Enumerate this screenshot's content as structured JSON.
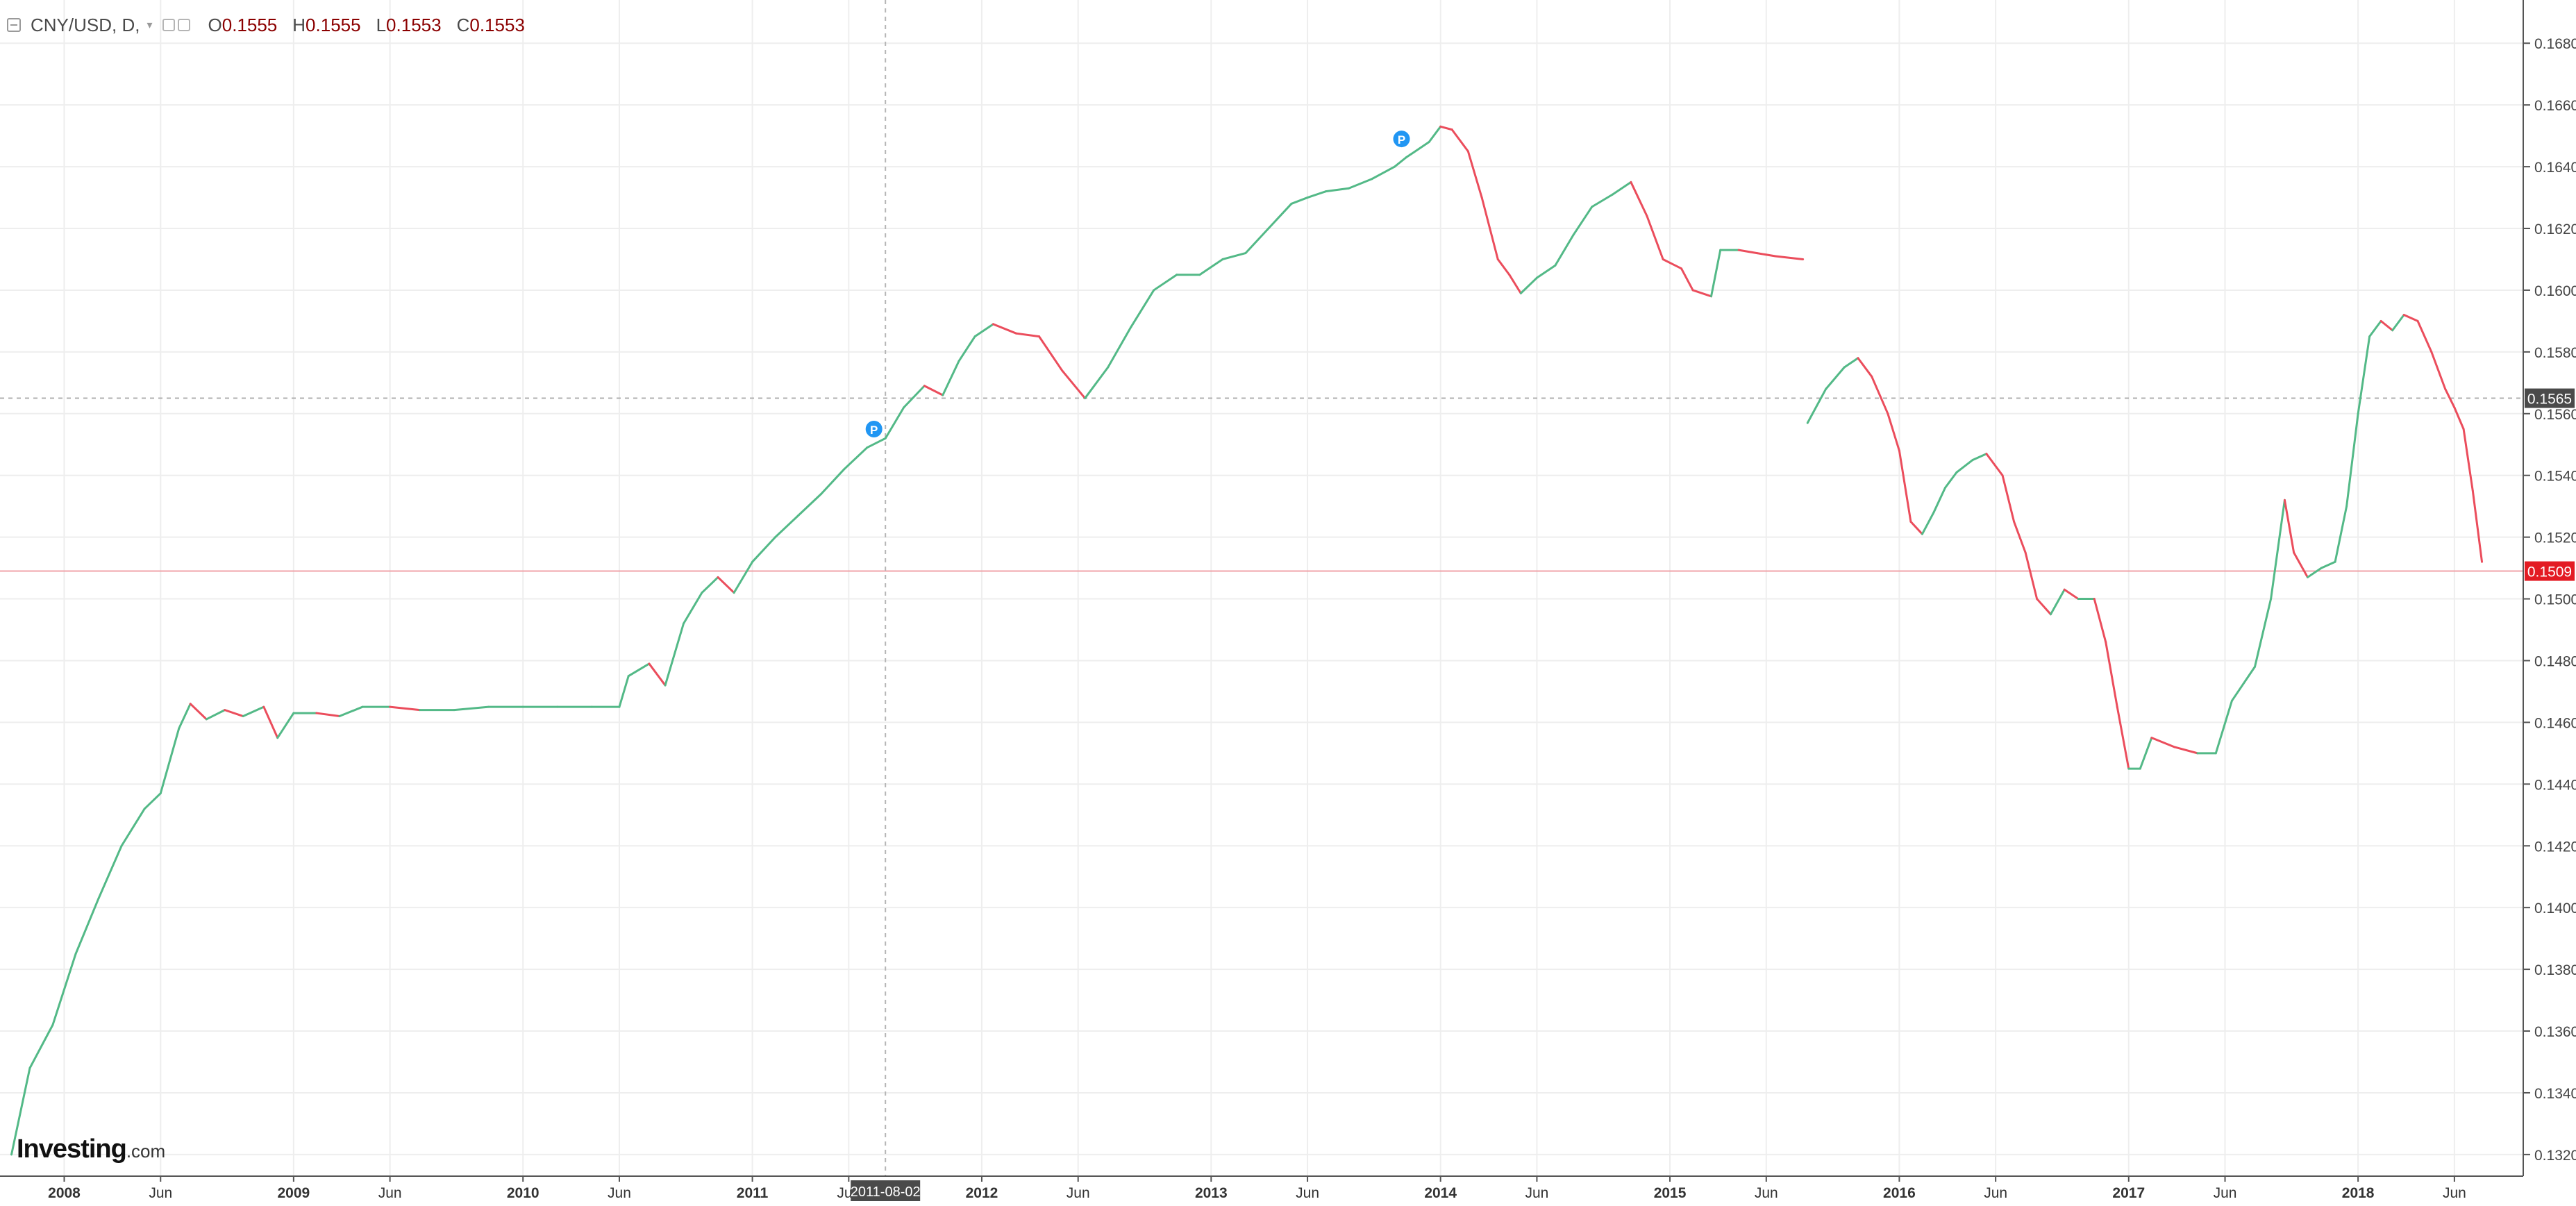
{
  "legend": {
    "symbol": "CNY/USD, D,",
    "o_label": "O",
    "o_value": "0.1555",
    "h_label": "H",
    "h_value": "0.1555",
    "l_label": "L",
    "l_value": "0.1553",
    "c_label": "C",
    "c_value": "0.1553"
  },
  "brand": {
    "name": "Investing",
    "suffix": ".com"
  },
  "chart_data": {
    "type": "line",
    "title": "CNY/USD, D,",
    "x_unit": "year",
    "ylim": [
      0.1313,
      0.1694
    ],
    "y_ticks": [
      "0.1320",
      "0.1340",
      "0.1360",
      "0.1380",
      "0.1400",
      "0.1420",
      "0.1440",
      "0.1460",
      "0.1480",
      "0.1500",
      "0.1520",
      "0.1540",
      "0.1560",
      "0.1580",
      "0.1600",
      "0.1620",
      "0.1640",
      "0.1660",
      "0.1680"
    ],
    "x_ticks": [
      {
        "label": "2008",
        "x": 2008.0,
        "major": true
      },
      {
        "label": "Jun",
        "x": 2008.42,
        "major": false
      },
      {
        "label": "2009",
        "x": 2009.0,
        "major": true
      },
      {
        "label": "Jun",
        "x": 2009.42,
        "major": false
      },
      {
        "label": "2010",
        "x": 2010.0,
        "major": true
      },
      {
        "label": "Jun",
        "x": 2010.42,
        "major": false
      },
      {
        "label": "2011",
        "x": 2011.0,
        "major": true
      },
      {
        "label": "Jun",
        "x": 2011.42,
        "major": false
      },
      {
        "label": "2012",
        "x": 2012.0,
        "major": true
      },
      {
        "label": "Jun",
        "x": 2012.42,
        "major": false
      },
      {
        "label": "2013",
        "x": 2013.0,
        "major": true
      },
      {
        "label": "Jun",
        "x": 2013.42,
        "major": false
      },
      {
        "label": "2014",
        "x": 2014.0,
        "major": true
      },
      {
        "label": "Jun",
        "x": 2014.42,
        "major": false
      },
      {
        "label": "2015",
        "x": 2015.0,
        "major": true
      },
      {
        "label": "Jun",
        "x": 2015.42,
        "major": false
      },
      {
        "label": "2016",
        "x": 2016.0,
        "major": true
      },
      {
        "label": "Jun",
        "x": 2016.42,
        "major": false
      },
      {
        "label": "2017",
        "x": 2017.0,
        "major": true
      },
      {
        "label": "Jun",
        "x": 2017.42,
        "major": false
      },
      {
        "label": "2018",
        "x": 2018.0,
        "major": true
      },
      {
        "label": "Jun",
        "x": 2018.42,
        "major": false
      }
    ],
    "series": [
      {
        "points": [
          [
            2007.77,
            0.132
          ],
          [
            2007.85,
            0.1348
          ],
          [
            2007.95,
            0.1362
          ],
          [
            2008.05,
            0.1385
          ],
          [
            2008.15,
            0.1403
          ],
          [
            2008.25,
            0.142
          ],
          [
            2008.35,
            0.1432
          ],
          [
            2008.42,
            0.1437
          ],
          [
            2008.5,
            0.1458
          ],
          [
            2008.55,
            0.1466
          ],
          [
            2008.62,
            0.1461
          ],
          [
            2008.7,
            0.1464
          ],
          [
            2008.78,
            0.1462
          ],
          [
            2008.87,
            0.1465
          ],
          [
            2008.93,
            0.1455
          ],
          [
            2009.0,
            0.1463
          ],
          [
            2009.1,
            0.1463
          ],
          [
            2009.2,
            0.1462
          ],
          [
            2009.3,
            0.1465
          ],
          [
            2009.42,
            0.1465
          ],
          [
            2009.55,
            0.1464
          ],
          [
            2009.7,
            0.1464
          ],
          [
            2009.85,
            0.1465
          ],
          [
            2010.0,
            0.1465
          ],
          [
            2010.15,
            0.1465
          ],
          [
            2010.3,
            0.1465
          ],
          [
            2010.42,
            0.1465
          ],
          [
            2010.46,
            0.1475
          ],
          [
            2010.55,
            0.1479
          ],
          [
            2010.62,
            0.1472
          ],
          [
            2010.7,
            0.1492
          ],
          [
            2010.78,
            0.1502
          ],
          [
            2010.85,
            0.1507
          ],
          [
            2010.92,
            0.1502
          ],
          [
            2011.0,
            0.1512
          ],
          [
            2011.1,
            0.152
          ],
          [
            2011.2,
            0.1527
          ],
          [
            2011.3,
            0.1534
          ],
          [
            2011.4,
            0.1542
          ],
          [
            2011.5,
            0.1549
          ],
          [
            2011.58,
            0.1552
          ],
          [
            2011.66,
            0.1562
          ],
          [
            2011.75,
            0.1569
          ],
          [
            2011.83,
            0.1566
          ],
          [
            2011.9,
            0.1577
          ],
          [
            2011.97,
            0.1585
          ],
          [
            2012.05,
            0.1589
          ],
          [
            2012.15,
            0.1586
          ],
          [
            2012.25,
            0.1585
          ],
          [
            2012.35,
            0.1574
          ],
          [
            2012.45,
            0.1565
          ],
          [
            2012.55,
            0.1575
          ],
          [
            2012.65,
            0.1588
          ],
          [
            2012.75,
            0.16
          ],
          [
            2012.85,
            0.1605
          ],
          [
            2012.95,
            0.1605
          ],
          [
            2013.05,
            0.161
          ],
          [
            2013.15,
            0.1612
          ],
          [
            2013.25,
            0.162
          ],
          [
            2013.35,
            0.1628
          ],
          [
            2013.42,
            0.163
          ],
          [
            2013.5,
            0.1632
          ],
          [
            2013.6,
            0.1633
          ],
          [
            2013.7,
            0.1636
          ],
          [
            2013.8,
            0.164
          ],
          [
            2013.85,
            0.1643
          ],
          [
            2013.95,
            0.1648
          ],
          [
            2014.0,
            0.1653
          ],
          [
            2014.05,
            0.1652
          ],
          [
            2014.12,
            0.1645
          ],
          [
            2014.18,
            0.163
          ],
          [
            2014.25,
            0.161
          ],
          [
            2014.3,
            0.1605
          ],
          [
            2014.35,
            0.1599
          ],
          [
            2014.42,
            0.1604
          ],
          [
            2014.5,
            0.1608
          ],
          [
            2014.58,
            0.1618
          ],
          [
            2014.66,
            0.1627
          ],
          [
            2014.75,
            0.1631
          ],
          [
            2014.83,
            0.1635
          ],
          [
            2014.9,
            0.1624
          ],
          [
            2014.97,
            0.161
          ],
          [
            2015.05,
            0.1607
          ],
          [
            2015.1,
            0.16
          ],
          [
            2015.18,
            0.1598
          ],
          [
            2015.22,
            0.1613
          ],
          [
            2015.3,
            0.1613
          ],
          [
            2015.38,
            0.1612
          ],
          [
            2015.46,
            0.1611
          ],
          [
            2015.58,
            0.161
          ]
        ]
      },
      {
        "points": [
          [
            2015.6,
            0.1557
          ],
          [
            2015.68,
            0.1568
          ],
          [
            2015.76,
            0.1575
          ],
          [
            2015.82,
            0.1578
          ],
          [
            2015.88,
            0.1572
          ],
          [
            2015.95,
            0.156
          ],
          [
            2016.0,
            0.1548
          ],
          [
            2016.05,
            0.1525
          ],
          [
            2016.1,
            0.1521
          ],
          [
            2016.15,
            0.1528
          ],
          [
            2016.2,
            0.1536
          ],
          [
            2016.25,
            0.1541
          ],
          [
            2016.32,
            0.1545
          ],
          [
            2016.38,
            0.1547
          ],
          [
            2016.45,
            0.154
          ],
          [
            2016.5,
            0.1525
          ],
          [
            2016.55,
            0.1515
          ],
          [
            2016.6,
            0.15
          ],
          [
            2016.66,
            0.1495
          ],
          [
            2016.72,
            0.1503
          ],
          [
            2016.78,
            0.15
          ],
          [
            2016.85,
            0.15
          ],
          [
            2016.9,
            0.1486
          ],
          [
            2016.95,
            0.1465
          ],
          [
            2017.0,
            0.1445
          ],
          [
            2017.05,
            0.1445
          ],
          [
            2017.1,
            0.1455
          ],
          [
            2017.2,
            0.1452
          ],
          [
            2017.3,
            0.145
          ],
          [
            2017.38,
            0.145
          ],
          [
            2017.45,
            0.1467
          ],
          [
            2017.55,
            0.1478
          ],
          [
            2017.62,
            0.15
          ],
          [
            2017.68,
            0.1532
          ],
          [
            2017.72,
            0.1515
          ],
          [
            2017.78,
            0.1507
          ],
          [
            2017.84,
            0.151
          ],
          [
            2017.9,
            0.1512
          ],
          [
            2017.95,
            0.153
          ],
          [
            2018.0,
            0.156
          ],
          [
            2018.05,
            0.1585
          ],
          [
            2018.1,
            0.159
          ],
          [
            2018.15,
            0.1587
          ],
          [
            2018.2,
            0.1592
          ],
          [
            2018.26,
            0.159
          ],
          [
            2018.32,
            0.158
          ],
          [
            2018.38,
            0.1568
          ],
          [
            2018.42,
            0.1562
          ],
          [
            2018.46,
            0.1555
          ],
          [
            2018.5,
            0.1535
          ],
          [
            2018.54,
            0.1512
          ]
        ]
      }
    ],
    "current_price_label": "0.1509",
    "reference_price_label": "0.1565",
    "crosshair_date_label": "2011-08-02",
    "crosshair_x": 2011.58,
    "markers": [
      {
        "label": "P",
        "x": 2011.53,
        "y": 0.1555
      },
      {
        "label": "P",
        "x": 2013.83,
        "y": 0.1649
      }
    ],
    "colors": {
      "up": "#53b987",
      "down": "#eb4d5c",
      "current_line": "#f0a3a8",
      "current_label_bg": "#e31b23",
      "ref_label_bg": "#4a4a4a",
      "axis": "#555555",
      "grid": "#eeeeee",
      "marker": "#2196f3"
    },
    "grid": true,
    "legend_position": "top-left"
  }
}
